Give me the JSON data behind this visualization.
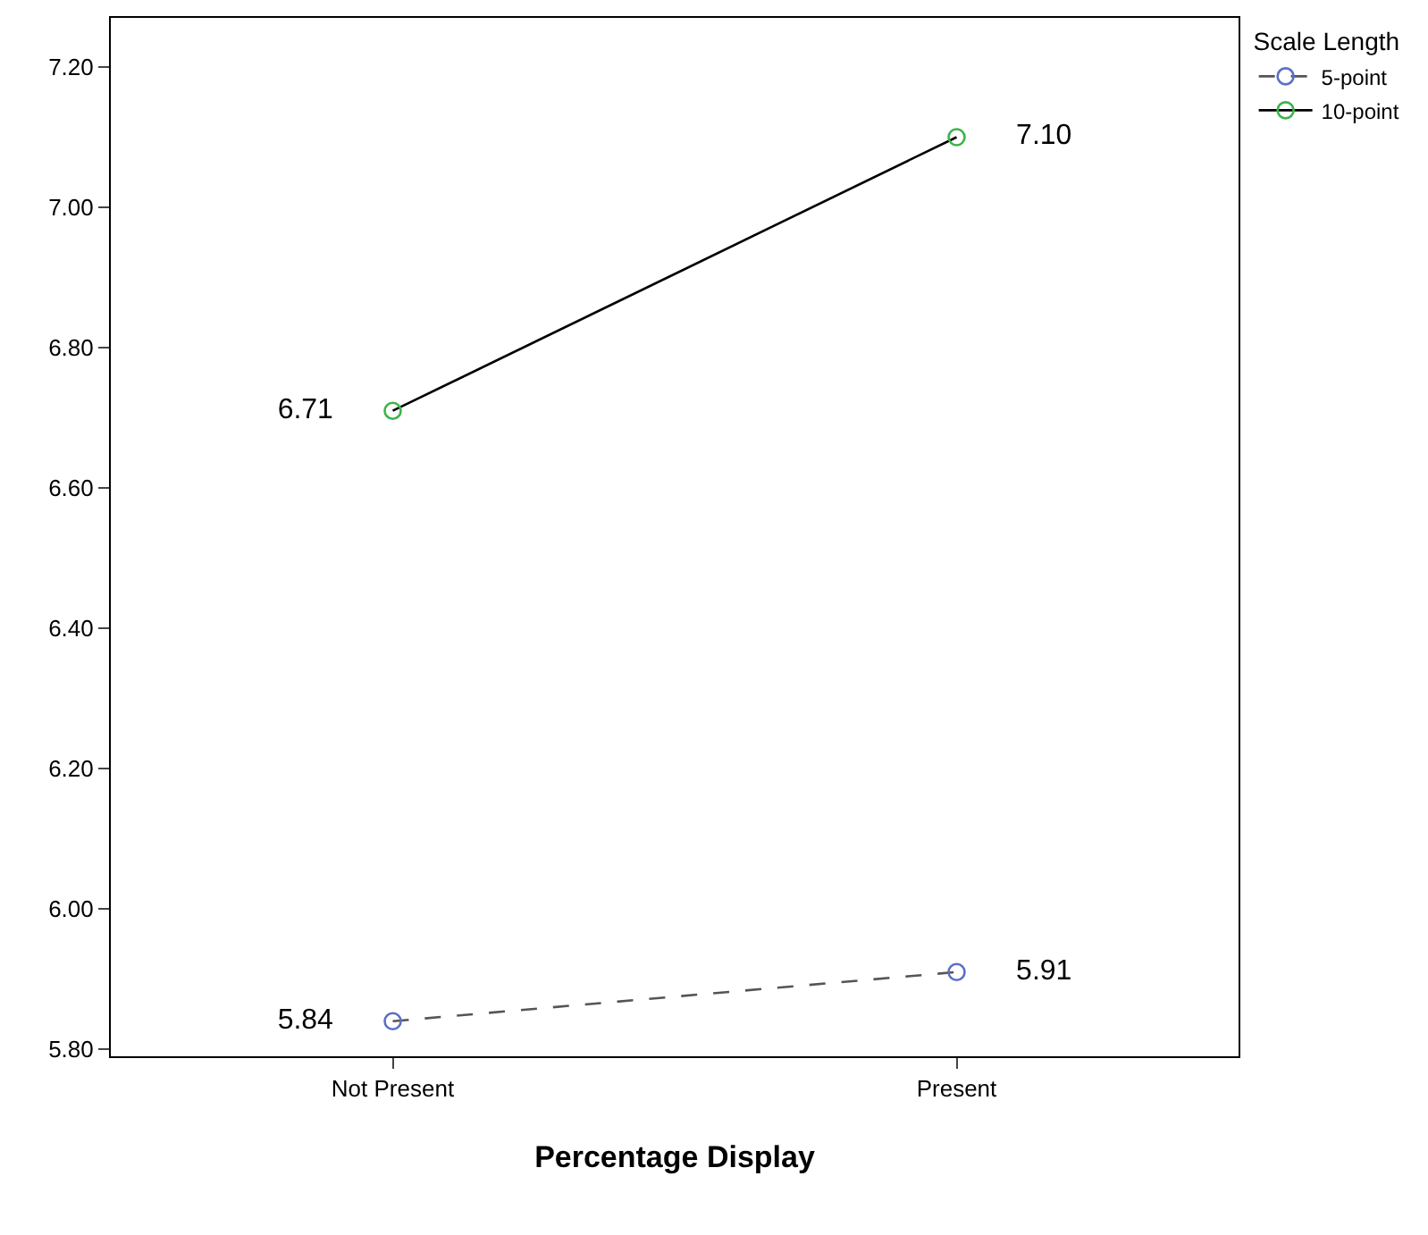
{
  "chart_data": {
    "type": "line",
    "xlabel": "Percentage Display",
    "legend_title": "Scale Length",
    "categories": [
      "Not Present",
      "Present"
    ],
    "series": [
      {
        "name": "5-point",
        "color": "#555555",
        "colors": [
          "#5a6fc8",
          "#5a6fc8"
        ],
        "line_style": "dashed",
        "values": [
          5.84,
          5.91
        ],
        "value_labels": [
          "5.84",
          "5.91"
        ]
      },
      {
        "name": "10-point",
        "color": "#000000",
        "colors": [
          "#3cb44b",
          "#3cb44b"
        ],
        "line_style": "solid",
        "values": [
          6.71,
          7.1
        ],
        "value_labels": [
          "6.71",
          "7.10"
        ]
      }
    ],
    "ylim": [
      5.79,
      7.27
    ],
    "yticks": [
      {
        "value": 5.8,
        "label": "5.80"
      },
      {
        "value": 6.0,
        "label": "6.00"
      },
      {
        "value": 6.2,
        "label": "6.20"
      },
      {
        "value": 6.4,
        "label": "6.40"
      },
      {
        "value": 6.6,
        "label": "6.60"
      },
      {
        "value": 6.8,
        "label": "6.80"
      },
      {
        "value": 7.0,
        "label": "7.00"
      },
      {
        "value": 7.2,
        "label": "7.20"
      }
    ],
    "marker": "circle",
    "grid": false,
    "legend": "top right"
  }
}
